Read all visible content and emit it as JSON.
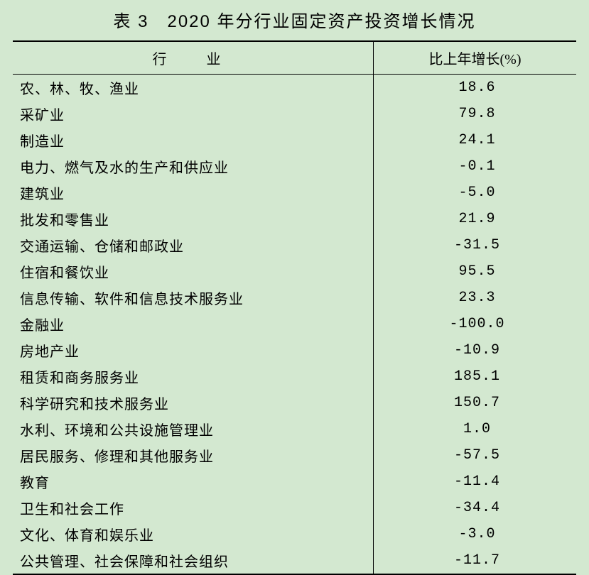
{
  "title": "表 3　2020 年分行业固定资产投资增长情况",
  "table": {
    "type": "table",
    "background_color": "#d3e8d0",
    "text_color": "#000000",
    "border_color": "#000000",
    "title_fontsize": 24,
    "header_fontsize": 20,
    "cell_fontsize": 20,
    "columns": [
      {
        "key": "industry",
        "label": "行　业",
        "width_pct": 64,
        "align": "left"
      },
      {
        "key": "value",
        "label": "比上年增长(%)",
        "width_pct": 36,
        "align": "center"
      }
    ],
    "rows": [
      {
        "industry": "农、林、牧、渔业",
        "value": "18.6"
      },
      {
        "industry": "采矿业",
        "value": "79.8"
      },
      {
        "industry": "制造业",
        "value": "24.1"
      },
      {
        "industry": "电力、燃气及水的生产和供应业",
        "value": "-0.1"
      },
      {
        "industry": "建筑业",
        "value": "-5.0"
      },
      {
        "industry": "批发和零售业",
        "value": "21.9"
      },
      {
        "industry": "交通运输、仓储和邮政业",
        "value": "-31.5"
      },
      {
        "industry": "住宿和餐饮业",
        "value": "95.5"
      },
      {
        "industry": "信息传输、软件和信息技术服务业",
        "value": "23.3"
      },
      {
        "industry": "金融业",
        "value": "-100.0"
      },
      {
        "industry": "房地产业",
        "value": "-10.9"
      },
      {
        "industry": "租赁和商务服务业",
        "value": "185.1"
      },
      {
        "industry": "科学研究和技术服务业",
        "value": "150.7"
      },
      {
        "industry": "水利、环境和公共设施管理业",
        "value": "1.0"
      },
      {
        "industry": "居民服务、修理和其他服务业",
        "value": "-57.5"
      },
      {
        "industry": "教育",
        "value": "-11.4"
      },
      {
        "industry": "卫生和社会工作",
        "value": "-34.4"
      },
      {
        "industry": "文化、体育和娱乐业",
        "value": "-3.0"
      },
      {
        "industry": "公共管理、社会保障和社会组织",
        "value": "-11.7"
      }
    ]
  }
}
